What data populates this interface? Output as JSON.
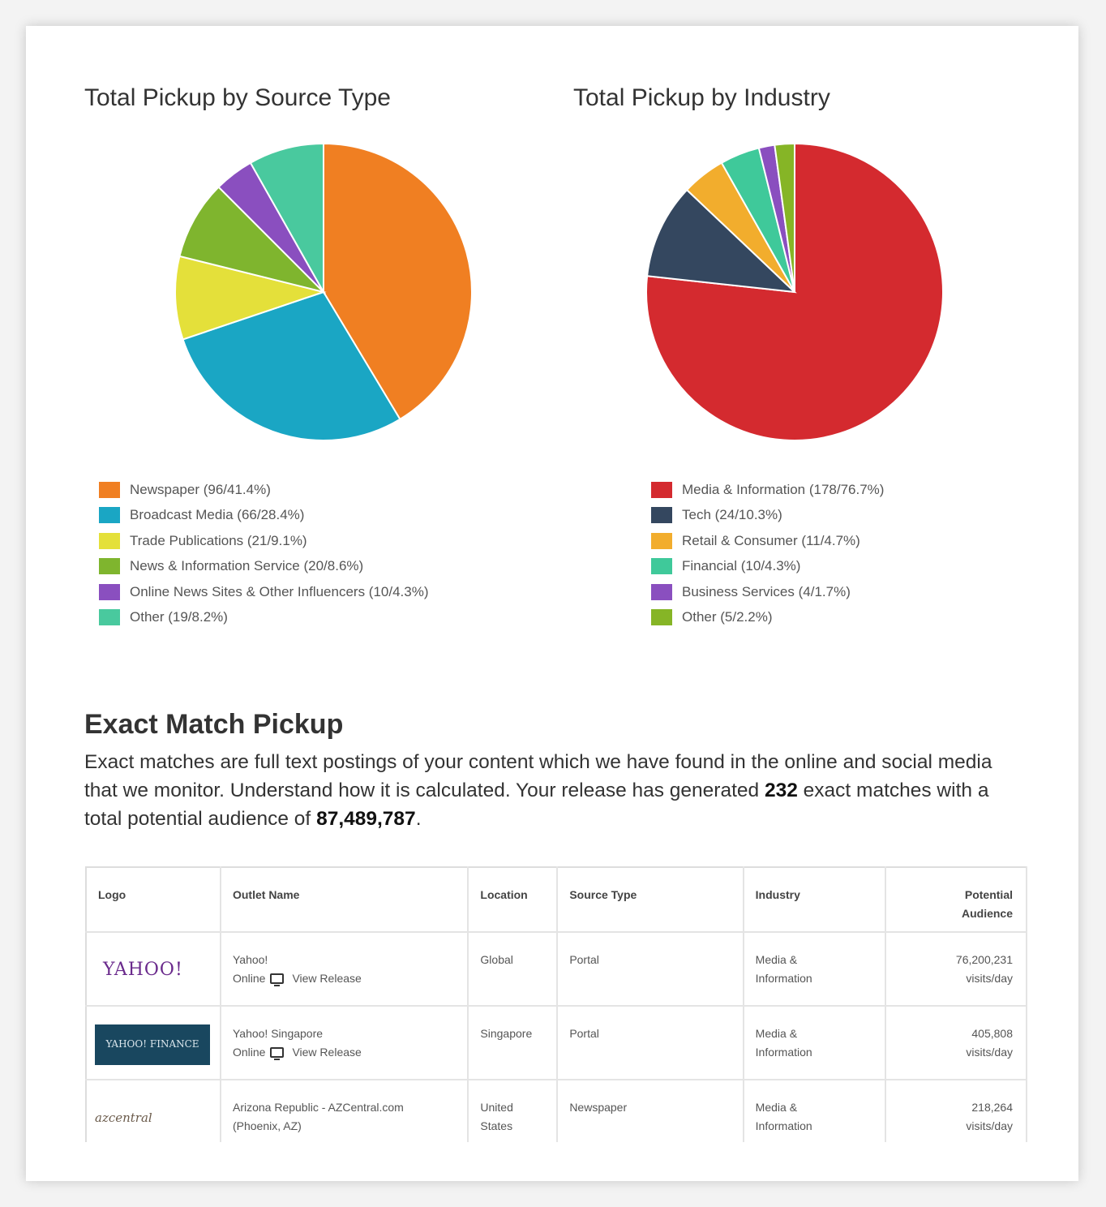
{
  "charts": {
    "source_type": {
      "title": "Total Pickup by Source Type",
      "legend": [
        "Newspaper (96/41.4%)",
        "Broadcast Media (66/28.4%)",
        "Trade Publications (21/9.1%)",
        "News & Information Service (20/8.6%)",
        "Online News Sites & Other Influencers (10/4.3%)",
        "Other (19/8.2%)"
      ]
    },
    "industry": {
      "title": "Total Pickup by Industry",
      "legend": [
        "Media & Information (178/76.7%)",
        "Tech (24/10.3%)",
        "Retail & Consumer (11/4.7%)",
        "Financial (10/4.3%)",
        "Business Services (4/1.7%)",
        "Other (5/2.2%)"
      ]
    }
  },
  "chart_data": [
    {
      "type": "pie",
      "title": "Total Pickup by Source Type",
      "categories": [
        "Newspaper",
        "Broadcast Media",
        "Trade Publications",
        "News & Information Service",
        "Online News Sites & Other Influencers",
        "Other"
      ],
      "values": [
        96,
        66,
        21,
        20,
        10,
        19
      ],
      "colors": [
        "#f07f22",
        "#1aa6c4",
        "#e4e03a",
        "#7fb52e",
        "#8a4fbf",
        "#49c99e"
      ],
      "legend": "bottom"
    },
    {
      "type": "pie",
      "title": "Total Pickup by Industry",
      "categories": [
        "Media & Information",
        "Tech",
        "Retail & Consumer",
        "Financial",
        "Business Services",
        "Other"
      ],
      "values": [
        178,
        24,
        11,
        10,
        4,
        5
      ],
      "colors": [
        "#d42a2f",
        "#34475f",
        "#f2ad2d",
        "#3fc99a",
        "#8a4fbf",
        "#86b526"
      ],
      "legend": "bottom"
    }
  ],
  "exact_match": {
    "title": "Exact Match Pickup",
    "text_1": "Exact matches are full text postings of your content which we have found in the online and social media that we monitor. Understand how it is calculated. Your release has generated",
    "count": "232",
    "text_2": "exact matches with a total potential audience of",
    "audience": "87,489,787",
    "text_3": "."
  },
  "table": {
    "headers": {
      "logo": "Logo",
      "outlet": "Outlet Name",
      "location": "Location",
      "source": "Source Type",
      "industry": "Industry",
      "audience_line1": "Potential",
      "audience_line2": "Audience"
    },
    "rows": [
      {
        "logo_text": "YAHOO!",
        "outlet": "Yahoo!",
        "online": "Online",
        "view": "View Release",
        "location": "Global",
        "source": "Portal",
        "industry_1": "Media &",
        "industry_2": "Information",
        "audience": "76,200,231",
        "audience_unit": "visits/day"
      },
      {
        "logo_text": "YAHOO! FINANCE",
        "outlet": "Yahoo! Singapore",
        "online": "Online",
        "view": "View Release",
        "location": "Singapore",
        "source": "Portal",
        "industry_1": "Media &",
        "industry_2": "Information",
        "audience": "405,808",
        "audience_unit": "visits/day"
      },
      {
        "logo_text": "azcentral",
        "outlet_1": "Arizona Republic - AZCentral.com",
        "outlet_2": "(Phoenix, AZ)",
        "location_1": "United",
        "location_2": "States",
        "source": "Newspaper",
        "industry_1": "Media &",
        "industry_2": "Information",
        "audience": "218,264",
        "audience_unit": "visits/day"
      }
    ]
  }
}
